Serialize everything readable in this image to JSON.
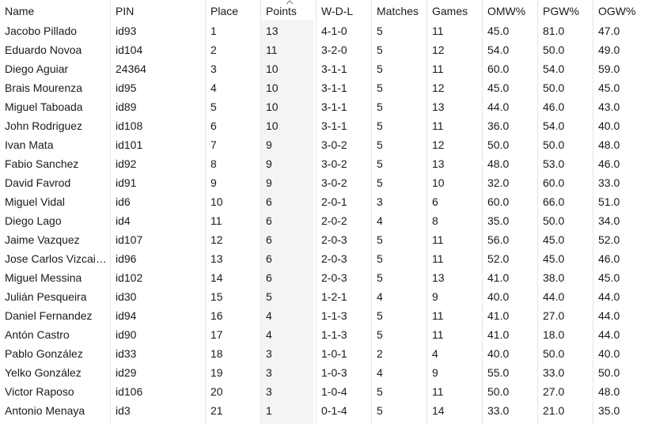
{
  "table": {
    "columns": [
      "Name",
      "PIN",
      "Place",
      "Points",
      "W-D-L",
      "Matches",
      "Games",
      "OMW%",
      "PGW%",
      "OGW%"
    ],
    "sorted_column": "Points",
    "sort_direction": "descending",
    "rows": [
      [
        "Jacobo Pillado",
        "id93",
        "1",
        "13",
        "4-1-0",
        "5",
        "11",
        "45.0",
        "81.0",
        "47.0"
      ],
      [
        "Eduardo Novoa",
        "id104",
        "2",
        "11",
        "3-2-0",
        "5",
        "12",
        "54.0",
        "50.0",
        "49.0"
      ],
      [
        "Diego Aguiar",
        "24364",
        "3",
        "10",
        "3-1-1",
        "5",
        "11",
        "60.0",
        "54.0",
        "59.0"
      ],
      [
        "Brais Mourenza",
        "id95",
        "4",
        "10",
        "3-1-1",
        "5",
        "12",
        "45.0",
        "50.0",
        "45.0"
      ],
      [
        "Miguel Taboada",
        "id89",
        "5",
        "10",
        "3-1-1",
        "5",
        "13",
        "44.0",
        "46.0",
        "43.0"
      ],
      [
        "John Rodriguez",
        "id108",
        "6",
        "10",
        "3-1-1",
        "5",
        "11",
        "36.0",
        "54.0",
        "40.0"
      ],
      [
        "Ivan Mata",
        "id101",
        "7",
        "9",
        "3-0-2",
        "5",
        "12",
        "50.0",
        "50.0",
        "48.0"
      ],
      [
        "Fabio Sanchez",
        "id92",
        "8",
        "9",
        "3-0-2",
        "5",
        "13",
        "48.0",
        "53.0",
        "46.0"
      ],
      [
        "David Favrod",
        "id91",
        "9",
        "9",
        "3-0-2",
        "5",
        "10",
        "32.0",
        "60.0",
        "33.0"
      ],
      [
        "Miguel Vidal",
        "id6",
        "10",
        "6",
        "2-0-1",
        "3",
        "6",
        "60.0",
        "66.0",
        "51.0"
      ],
      [
        "Diego Lago",
        "id4",
        "11",
        "6",
        "2-0-2",
        "4",
        "8",
        "35.0",
        "50.0",
        "34.0"
      ],
      [
        "Jaime Vazquez",
        "id107",
        "12",
        "6",
        "2-0-3",
        "5",
        "11",
        "56.0",
        "45.0",
        "52.0"
      ],
      [
        "Jose Carlos Vizcai…",
        "id96",
        "13",
        "6",
        "2-0-3",
        "5",
        "11",
        "52.0",
        "45.0",
        "46.0"
      ],
      [
        "Miguel Messina",
        "id102",
        "14",
        "6",
        "2-0-3",
        "5",
        "13",
        "41.0",
        "38.0",
        "45.0"
      ],
      [
        "Julián Pesqueira",
        "id30",
        "15",
        "5",
        "1-2-1",
        "4",
        "9",
        "40.0",
        "44.0",
        "44.0"
      ],
      [
        "Daniel Fernandez",
        "id94",
        "16",
        "4",
        "1-1-3",
        "5",
        "11",
        "41.0",
        "27.0",
        "44.0"
      ],
      [
        "Antón Castro",
        "id90",
        "17",
        "4",
        "1-1-3",
        "5",
        "11",
        "41.0",
        "18.0",
        "44.0"
      ],
      [
        "Pablo González",
        "id33",
        "18",
        "3",
        "1-0-1",
        "2",
        "4",
        "40.0",
        "50.0",
        "40.0"
      ],
      [
        "Yelko González",
        "id29",
        "19",
        "3",
        "1-0-3",
        "4",
        "9",
        "55.0",
        "33.0",
        "50.0"
      ],
      [
        "Victor Raposo",
        "id106",
        "20",
        "3",
        "1-0-4",
        "5",
        "11",
        "50.0",
        "27.0",
        "48.0"
      ],
      [
        "Antonio Menaya",
        "id3",
        "21",
        "1",
        "0-1-4",
        "5",
        "14",
        "33.0",
        "21.0",
        "35.0"
      ]
    ]
  },
  "colors": {
    "sorted_column_bg": "#f4f4f4",
    "separator": "#e6e6e6",
    "text": "#1a1a1a"
  },
  "icons": {
    "sort": "chevron-up-icon"
  }
}
